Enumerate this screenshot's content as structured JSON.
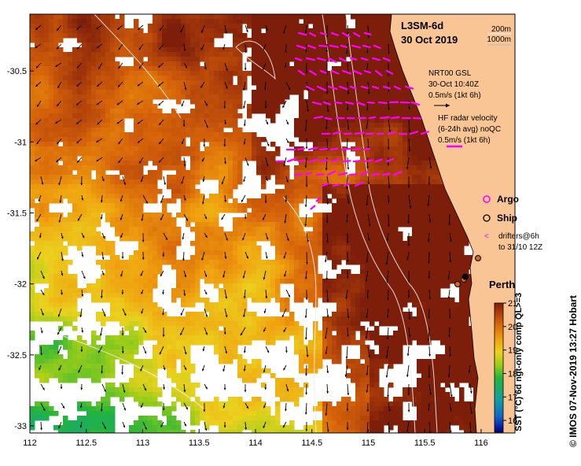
{
  "map": {
    "product": "L3SM-6d",
    "date": "30 Oct 2019",
    "x_ticks": [
      "112",
      "112.5",
      "113",
      "113.5",
      "114",
      "114.5",
      "115",
      "115.5",
      "116"
    ],
    "x_tick_values": [
      112,
      112.5,
      113,
      113.5,
      114,
      114.5,
      115,
      115.5,
      116
    ],
    "y_ticks": [
      "-30.5",
      "-31",
      "-31.5",
      "-32",
      "-32.5",
      "-33"
    ],
    "y_tick_values": [
      -30.5,
      -31,
      -31.5,
      -32,
      -32.5,
      -33
    ],
    "lon_range": [
      112,
      116.3
    ],
    "lat_range": [
      -33.05,
      -30.1
    ],
    "isobath_legend": [
      "200m",
      "1000m"
    ],
    "gsl_legend": [
      "NRT00 GSL",
      "30-Oct 10:40Z",
      "0.5m/s (1kt 6h)"
    ],
    "hf_legend": [
      "HF radar velocity",
      "(6-24h avg) noQC",
      "0.5m/s (1kt 6h)"
    ],
    "argo_label": "Argo",
    "ship_label": "Ship",
    "drifters_label": [
      "drifters@6h",
      "to 31/10 12Z"
    ],
    "city_label": "Perth",
    "city": {
      "lon": 115.86,
      "lat": -31.95
    },
    "colorbar_title": "SST (°C) 6d ngt-only comp QL>=3",
    "colorbar_ticks": [
      "21",
      "20",
      "19",
      "18",
      "17",
      "16"
    ],
    "colorbar_tick_values": [
      21,
      20,
      19,
      18,
      17,
      16
    ],
    "colorbar_range": [
      15.5,
      21
    ],
    "credit": "© IMOS 07-Nov-2019 13:27 Hobart",
    "colors": {
      "land": "#f9c595",
      "hf_arrow": "#ff00ff",
      "gsl_arrow": "#000000",
      "isobath": "#e8e8e8",
      "coast": "#000000"
    }
  }
}
